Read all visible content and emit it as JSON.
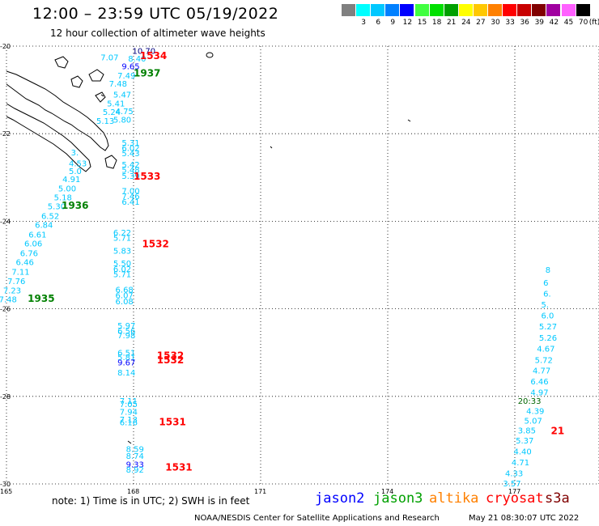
{
  "header": {
    "title": "12:00 – 23:59 UTC 05/19/2022",
    "subtitle": "12 hour collection of altimeter wave heights"
  },
  "color_scale": {
    "unit": "(ft)",
    "bins": [
      {
        "label": "",
        "color": "#808080"
      },
      {
        "label": "3",
        "color": "#00ffff"
      },
      {
        "label": "6",
        "color": "#00c8ff"
      },
      {
        "label": "9",
        "color": "#0080ff"
      },
      {
        "label": "12",
        "color": "#0000ff"
      },
      {
        "label": "15",
        "color": "#40ff40"
      },
      {
        "label": "18",
        "color": "#00e000"
      },
      {
        "label": "21",
        "color": "#00a000"
      },
      {
        "label": "24",
        "color": "#ffff00"
      },
      {
        "label": "27",
        "color": "#ffc800"
      },
      {
        "label": "30",
        "color": "#ff8000"
      },
      {
        "label": "33",
        "color": "#ff0000"
      },
      {
        "label": "36",
        "color": "#c80000"
      },
      {
        "label": "39",
        "color": "#800000"
      },
      {
        "label": "42",
        "color": "#a000a0"
      },
      {
        "label": "45",
        "color": "#ff60ff"
      },
      {
        "label": "70",
        "color": "#000000"
      }
    ]
  },
  "axes": {
    "lat_labels": [
      "-20",
      "-22",
      "-24",
      "-26",
      "-28",
      "-30"
    ],
    "lon_labels": [
      "165",
      "168",
      "171",
      "174",
      "177"
    ]
  },
  "wave_heights": {
    "color_cyan": "#00c8ff",
    "color_blue": "#0000ff",
    "color_darkblue": "#000080",
    "color_green": "#008000",
    "color_darkgreen": "#006400",
    "track_a": [
      {
        "v": "10.70",
        "c": "#000080",
        "lon": 168.2,
        "lat": -20.1
      },
      {
        "v": "7.07",
        "c": "#00c8ff",
        "lon": 167.45,
        "lat": -20.25
      },
      {
        "v": "8.40",
        "c": "#00c8ff",
        "lon": 168.1,
        "lat": -20.28
      },
      {
        "v": "9.65",
        "c": "#0000ff",
        "lon": 167.95,
        "lat": -20.45
      },
      {
        "v": "7.49",
        "c": "#00c8ff",
        "lon": 167.85,
        "lat": -20.67
      },
      {
        "v": "7.48",
        "c": "#00c8ff",
        "lon": 167.65,
        "lat": -20.85
      },
      {
        "v": "5.47",
        "c": "#00c8ff",
        "lon": 167.75,
        "lat": -21.1
      },
      {
        "v": "5.41",
        "c": "#00c8ff",
        "lon": 167.6,
        "lat": -21.3
      },
      {
        "v": "5.24",
        "c": "#00c8ff",
        "lon": 167.5,
        "lat": -21.5
      },
      {
        "v": "4.75",
        "c": "#00c8ff",
        "lon": 167.8,
        "lat": -21.48
      },
      {
        "v": "5.13",
        "c": "#00c8ff",
        "lon": 167.35,
        "lat": -21.7
      },
      {
        "v": "5.80",
        "c": "#00c8ff",
        "lon": 167.75,
        "lat": -21.67
      },
      {
        "v": "5.31",
        "c": "#00c8ff",
        "lon": 167.95,
        "lat": -22.2
      },
      {
        "v": "6.02",
        "c": "#00c8ff",
        "lon": 167.95,
        "lat": -22.32
      },
      {
        "v": "5.43",
        "c": "#00c8ff",
        "lon": 167.95,
        "lat": -22.44
      },
      {
        "v": "5.42",
        "c": "#00c8ff",
        "lon": 167.95,
        "lat": -22.7
      },
      {
        "v": "5.48",
        "c": "#00c8ff",
        "lon": 167.95,
        "lat": -22.82
      },
      {
        "v": "5.39",
        "c": "#00c8ff",
        "lon": 167.95,
        "lat": -22.96
      },
      {
        "v": "7.00",
        "c": "#00c8ff",
        "lon": 167.95,
        "lat": -23.3
      },
      {
        "v": "7.46",
        "c": "#00c8ff",
        "lon": 167.95,
        "lat": -23.42
      },
      {
        "v": "6.41",
        "c": "#00c8ff",
        "lon": 167.95,
        "lat": -23.55
      },
      {
        "v": "6.22",
        "c": "#00c8ff",
        "lon": 167.75,
        "lat": -24.25
      },
      {
        "v": "5.71",
        "c": "#00c8ff",
        "lon": 167.75,
        "lat": -24.37
      },
      {
        "v": "5.83",
        "c": "#00c8ff",
        "lon": 167.75,
        "lat": -24.67
      },
      {
        "v": "5.50",
        "c": "#00c8ff",
        "lon": 167.75,
        "lat": -24.95
      },
      {
        "v": "6.02",
        "c": "#00c8ff",
        "lon": 167.75,
        "lat": -25.08
      },
      {
        "v": "5.71",
        "c": "#00c8ff",
        "lon": 167.75,
        "lat": -25.2
      },
      {
        "v": "6.68",
        "c": "#00c8ff",
        "lon": 167.8,
        "lat": -25.55
      },
      {
        "v": "6.07",
        "c": "#00c8ff",
        "lon": 167.8,
        "lat": -25.68
      },
      {
        "v": "6.08",
        "c": "#00c8ff",
        "lon": 167.8,
        "lat": -25.82
      },
      {
        "v": "5.97",
        "c": "#00c8ff",
        "lon": 167.85,
        "lat": -26.38
      },
      {
        "v": "6.56",
        "c": "#00c8ff",
        "lon": 167.85,
        "lat": -26.5
      },
      {
        "v": "7.98",
        "c": "#00c8ff",
        "lon": 167.85,
        "lat": -26.6
      },
      {
        "v": "6.51",
        "c": "#00c8ff",
        "lon": 167.85,
        "lat": -27.0
      },
      {
        "v": "5.81",
        "c": "#00c8ff",
        "lon": 167.85,
        "lat": -27.1
      },
      {
        "v": "9.67",
        "c": "#0000ff",
        "lon": 167.85,
        "lat": -27.22
      },
      {
        "v": "8.14",
        "c": "#00c8ff",
        "lon": 167.85,
        "lat": -27.45
      },
      {
        "v": "7.11",
        "c": "#00c8ff",
        "lon": 167.9,
        "lat": -28.1
      },
      {
        "v": "7.05",
        "c": "#00c8ff",
        "lon": 167.9,
        "lat": -28.17
      },
      {
        "v": "7.94",
        "c": "#00c8ff",
        "lon": 167.9,
        "lat": -28.35
      },
      {
        "v": "7.13",
        "c": "#00c8ff",
        "lon": 167.9,
        "lat": -28.52
      },
      {
        "v": "6.16",
        "c": "#00c8ff",
        "lon": 167.9,
        "lat": -28.59
      },
      {
        "v": "8.59",
        "c": "#00c8ff",
        "lon": 168.05,
        "lat": -29.2
      },
      {
        "v": "8.74",
        "c": "#00c8ff",
        "lon": 168.05,
        "lat": -29.35
      },
      {
        "v": "9.33",
        "c": "#0000ff",
        "lon": 168.05,
        "lat": -29.55
      },
      {
        "v": "8.92",
        "c": "#00c8ff",
        "lon": 168.05,
        "lat": -29.67
      }
    ],
    "track_b": [
      {
        "v": "3.",
        "c": "#00c8ff",
        "lon": 166.75,
        "lat": -22.42
      },
      {
        "v": "4.53",
        "c": "#00c8ff",
        "lon": 166.7,
        "lat": -22.67
      },
      {
        "v": "5.0",
        "c": "#00c8ff",
        "lon": 166.7,
        "lat": -22.85
      },
      {
        "v": "4.91",
        "c": "#00c8ff",
        "lon": 166.55,
        "lat": -23.03
      },
      {
        "v": "5.00",
        "c": "#00c8ff",
        "lon": 166.45,
        "lat": -23.24
      },
      {
        "v": "5.18",
        "c": "#00c8ff",
        "lon": 166.35,
        "lat": -23.45
      },
      {
        "v": "5.30",
        "c": "#00c8ff",
        "lon": 166.2,
        "lat": -23.65
      },
      {
        "v": "6.52",
        "c": "#00c8ff",
        "lon": 166.05,
        "lat": -23.87
      },
      {
        "v": "6.84",
        "c": "#00c8ff",
        "lon": 165.9,
        "lat": -24.08
      },
      {
        "v": "6.61",
        "c": "#00c8ff",
        "lon": 165.75,
        "lat": -24.3
      },
      {
        "v": "6.06",
        "c": "#00c8ff",
        "lon": 165.65,
        "lat": -24.5
      },
      {
        "v": "6.76",
        "c": "#00c8ff",
        "lon": 165.55,
        "lat": -24.72
      },
      {
        "v": "6.46",
        "c": "#00c8ff",
        "lon": 165.45,
        "lat": -24.93
      },
      {
        "v": "7.11",
        "c": "#00c8ff",
        "lon": 165.35,
        "lat": -25.15
      },
      {
        "v": "7.76",
        "c": "#00c8ff",
        "lon": 165.25,
        "lat": -25.36
      },
      {
        "v": "7.23",
        "c": "#00c8ff",
        "lon": 165.15,
        "lat": -25.57
      },
      {
        "v": "7.48",
        "c": "#00c8ff",
        "lon": 165.05,
        "lat": -25.78
      }
    ],
    "track_c": [
      {
        "v": "8",
        "c": "#00c8ff",
        "lon": 177.95,
        "lat": -25.1
      },
      {
        "v": "6",
        "c": "#00c8ff",
        "lon": 177.9,
        "lat": -25.4
      },
      {
        "v": "6.",
        "c": "#00c8ff",
        "lon": 177.9,
        "lat": -25.65
      },
      {
        "v": "5.",
        "c": "#00c8ff",
        "lon": 177.85,
        "lat": -25.9
      },
      {
        "v": "6.0",
        "c": "#00c8ff",
        "lon": 177.85,
        "lat": -26.15
      },
      {
        "v": "5.27",
        "c": "#00c8ff",
        "lon": 177.8,
        "lat": -26.4
      },
      {
        "v": "5.26",
        "c": "#00c8ff",
        "lon": 177.8,
        "lat": -26.65
      },
      {
        "v": "4.67",
        "c": "#00c8ff",
        "lon": 177.75,
        "lat": -26.9
      },
      {
        "v": "5.72",
        "c": "#00c8ff",
        "lon": 177.7,
        "lat": -27.16
      },
      {
        "v": "4.77",
        "c": "#00c8ff",
        "lon": 177.65,
        "lat": -27.4
      },
      {
        "v": "6.46",
        "c": "#00c8ff",
        "lon": 177.6,
        "lat": -27.65
      },
      {
        "v": "4.97",
        "c": "#00c8ff",
        "lon": 177.6,
        "lat": -27.9
      },
      {
        "v": "20:33",
        "c": "#006400",
        "lon": 177.3,
        "lat": -28.1
      },
      {
        "v": "4.39",
        "c": "#00c8ff",
        "lon": 177.5,
        "lat": -28.33
      },
      {
        "v": "5.07",
        "c": "#00c8ff",
        "lon": 177.45,
        "lat": -28.55
      },
      {
        "v": "3.85",
        "c": "#00c8ff",
        "lon": 177.3,
        "lat": -28.77
      },
      {
        "v": "5.37",
        "c": "#00c8ff",
        "lon": 177.25,
        "lat": -29.0
      },
      {
        "v": "4.40",
        "c": "#00c8ff",
        "lon": 177.2,
        "lat": -29.25
      },
      {
        "v": "4.71",
        "c": "#00c8ff",
        "lon": 177.15,
        "lat": -29.5
      },
      {
        "v": "4.33",
        "c": "#00c8ff",
        "lon": 177.0,
        "lat": -29.75
      },
      {
        "v": "3.57",
        "c": "#00c8ff",
        "lon": 176.95,
        "lat": -29.98
      }
    ]
  },
  "time_labels": [
    {
      "v": "1534",
      "c": "#ff0000",
      "lon": 168.15,
      "lat": -20.2
    },
    {
      "v": "1937",
      "c": "#008000",
      "lon": 168.0,
      "lat": -20.6
    },
    {
      "v": "1533",
      "c": "#ff0000",
      "lon": 168.0,
      "lat": -22.96
    },
    {
      "v": "1936",
      "c": "#008000",
      "lon": 166.3,
      "lat": -23.62
    },
    {
      "v": "1532",
      "c": "#ff0000",
      "lon": 168.2,
      "lat": -24.5
    },
    {
      "v": "1935",
      "c": "#008000",
      "lon": 165.5,
      "lat": -25.75
    },
    {
      "v": "1532",
      "c": "#ff0000",
      "lon": 168.55,
      "lat": -27.05
    },
    {
      "v": "1532",
      "c": "#ff0000",
      "lon": 168.55,
      "lat": -27.15
    },
    {
      "v": "1531",
      "c": "#ff0000",
      "lon": 168.6,
      "lat": -28.57
    },
    {
      "v": "1531",
      "c": "#ff0000",
      "lon": 168.75,
      "lat": -29.6
    },
    {
      "v": "21",
      "c": "#ff0000",
      "lon": 177.85,
      "lat": -28.77
    }
  ],
  "note": "note:  1) Time is in UTC; 2) SWH is in feet",
  "satellites": [
    {
      "name": "jason2",
      "color": "#0000ff"
    },
    {
      "name": "jason3",
      "color": "#00a000"
    },
    {
      "name": "altika",
      "color": "#ff8000"
    },
    {
      "name": "cryosat",
      "color": "#ff0000"
    },
    {
      "name": "s3a",
      "color": "#800000"
    }
  ],
  "footer": {
    "credit": "NOAA/NESDIS Center for Satellite Applications and Research",
    "generated": "May 21 08:30:07 UTC 2022"
  }
}
